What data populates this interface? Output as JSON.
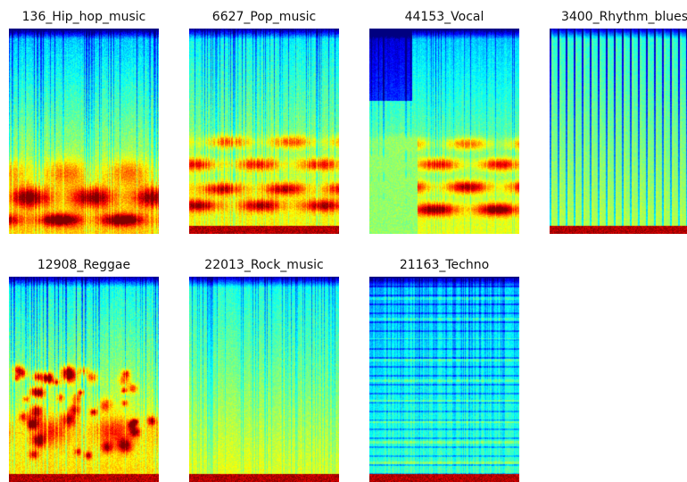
{
  "spectrograms": [
    {
      "title": "136_Hip_hop_music",
      "style": "hiphop"
    },
    {
      "title": "6627_Pop_music",
      "style": "pop"
    },
    {
      "title": "44153_Vocal",
      "style": "vocal"
    },
    {
      "title": "3400_Rhythm_blues",
      "style": "rnb"
    },
    {
      "title": "12908_Reggae",
      "style": "reggae"
    },
    {
      "title": "22013_Rock_music",
      "style": "rock"
    },
    {
      "title": "21163_Techno",
      "style": "techno"
    }
  ],
  "colormap": "jet"
}
